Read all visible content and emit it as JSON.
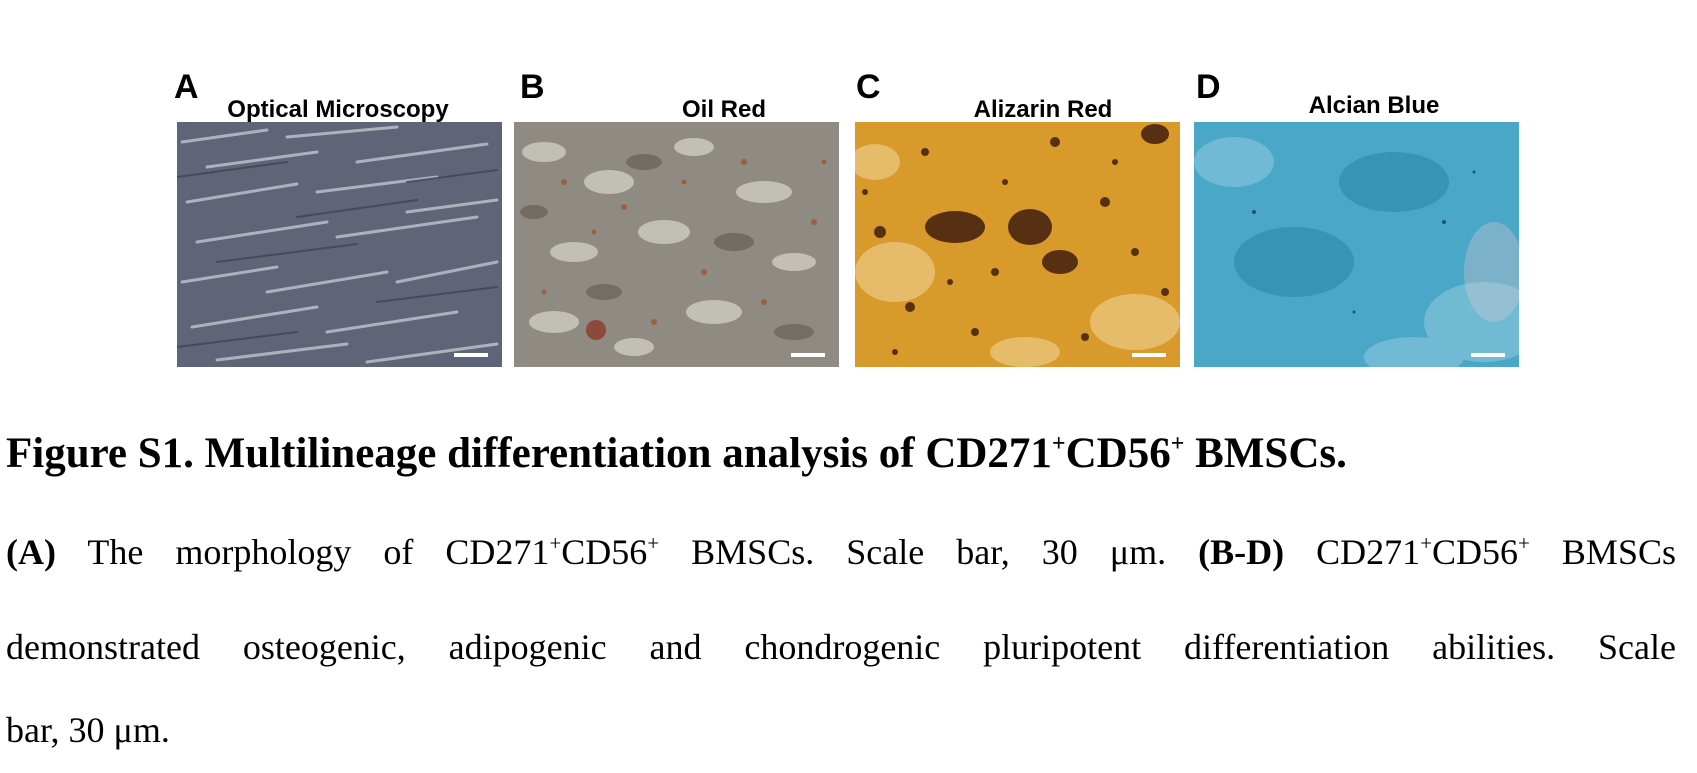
{
  "panels": [
    {
      "letter": "A",
      "title": "Optical Microscopy",
      "color": "#5f6478"
    },
    {
      "letter": "B",
      "title": "Oil Red",
      "color": "#8f8a82"
    },
    {
      "letter": "C",
      "title": "Alizarin Red",
      "color": "#d89a2a"
    },
    {
      "letter": "D",
      "title": "Alcian Blue",
      "color": "#4aa7c7"
    }
  ],
  "caption": {
    "figure_label": "Figure S1. Multilineage differentiation analysis of CD271",
    "sup_plus": "+",
    "cd56": "CD56",
    "title_end": " BMSCs.",
    "p1_label": "(A)",
    "p1_text_a": " The morphology of CD271",
    "p1_text_b": " BMSCs. Scale bar, 30 μm. ",
    "p2_label": "(B-D)",
    "p2_text_a": " CD271",
    "p2_text_b": " BMSCs",
    "line2": "demonstrated osteogenic, adipogenic and chondrogenic pluripotent differentiation abilities. Scale",
    "line3": "bar, 30 μm."
  }
}
